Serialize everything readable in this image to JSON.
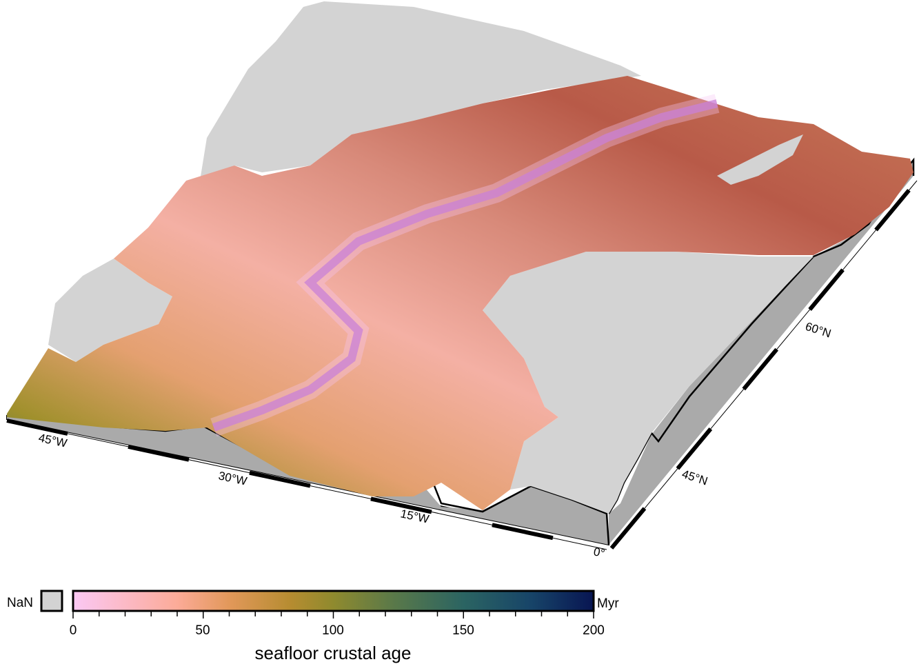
{
  "map": {
    "type": "3d-perspective-surface",
    "x_axis_labels": [
      "45°W",
      "30°W",
      "15°W",
      "0°"
    ],
    "y_axis_labels": [
      "45°N",
      "60°N"
    ],
    "colors": {
      "land_nan": "#d3d3d3",
      "side_wall": "#aaaaaa",
      "frame": "#000000"
    }
  },
  "colorbar": {
    "nan_label": "NaN",
    "unit": "Myr",
    "title": "seafloor crustal age",
    "range": [
      0,
      200
    ],
    "ticks": [
      "0",
      "50",
      "100",
      "150",
      "200"
    ],
    "colors": [
      "#fbc8f4",
      "#fcb0a0",
      "#e59a5c",
      "#c08c32",
      "#98902a",
      "#5f7a44",
      "#2e6660",
      "#1b4a68",
      "#0a1b55"
    ]
  }
}
